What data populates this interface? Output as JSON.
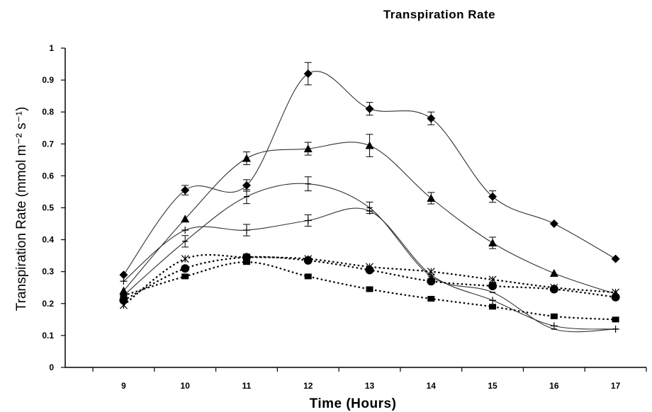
{
  "chart_data": {
    "type": "line",
    "title": "Transpiration Rate",
    "xlabel": "Time (Hours)",
    "ylabel": "Transpiration Rate (mmol m⁻² s⁻¹)",
    "x": [
      9,
      10,
      11,
      12,
      13,
      14,
      15,
      16,
      17
    ],
    "x_tick_labels": [
      "9",
      "10",
      "11",
      "12",
      "13",
      "14",
      "15",
      "16",
      "17"
    ],
    "y_tick_labels": [
      "0",
      "0.1",
      "0.2",
      "0.3",
      "0.4",
      "0.5",
      "0.6",
      "0.7",
      "0.8",
      "0.9",
      "1"
    ],
    "xlim": [
      8.05,
      17.5
    ],
    "ylim": [
      0,
      1
    ],
    "grid": false,
    "legend": "none",
    "series": [
      {
        "marker": "diamond",
        "style": "solid",
        "values": [
          0.29,
          0.555,
          0.57,
          0.92,
          0.81,
          0.78,
          0.535,
          0.45,
          0.34
        ],
        "errors": [
          0.0,
          0.015,
          0.018,
          0.035,
          0.02,
          0.02,
          0.018,
          0.0,
          0.0
        ]
      },
      {
        "marker": "triangle",
        "style": "solid",
        "values": [
          0.24,
          0.465,
          0.655,
          0.685,
          0.695,
          0.53,
          0.39,
          0.295,
          0.23
        ],
        "errors": [
          0.0,
          0.0,
          0.02,
          0.02,
          0.035,
          0.018,
          0.018,
          0.0,
          0.0
        ]
      },
      {
        "marker": "bar",
        "style": "solid",
        "values": [
          0.225,
          0.395,
          0.535,
          0.575,
          0.5,
          0.285,
          0.235,
          0.12,
          0.12
        ],
        "errors": [
          0.0,
          0.018,
          0.022,
          0.022,
          0.018,
          0.0,
          0.0,
          0.0,
          0.0
        ]
      },
      {
        "marker": "plus",
        "style": "solid",
        "values": [
          0.27,
          0.43,
          0.43,
          0.46,
          0.49,
          0.29,
          0.21,
          0.13,
          0.12
        ],
        "errors": [
          0.0,
          0.0,
          0.018,
          0.018,
          0.0,
          0.0,
          0.0,
          0.0,
          0.0
        ]
      },
      {
        "marker": "circle",
        "style": "dotted",
        "values": [
          0.21,
          0.31,
          0.345,
          0.335,
          0.305,
          0.27,
          0.255,
          0.245,
          0.22
        ],
        "errors": [
          0,
          0,
          0,
          0,
          0,
          0,
          0,
          0,
          0
        ]
      },
      {
        "marker": "star",
        "style": "dotted",
        "values": [
          0.195,
          0.34,
          0.345,
          0.34,
          0.315,
          0.3,
          0.275,
          0.25,
          0.235
        ],
        "errors": [
          0,
          0,
          0,
          0,
          0,
          0,
          0,
          0,
          0
        ]
      },
      {
        "marker": "square",
        "style": "dotted",
        "values": [
          0.225,
          0.285,
          0.33,
          0.285,
          0.245,
          0.215,
          0.19,
          0.16,
          0.15
        ],
        "errors": [
          0,
          0,
          0,
          0,
          0,
          0,
          0,
          0,
          0
        ]
      }
    ]
  }
}
